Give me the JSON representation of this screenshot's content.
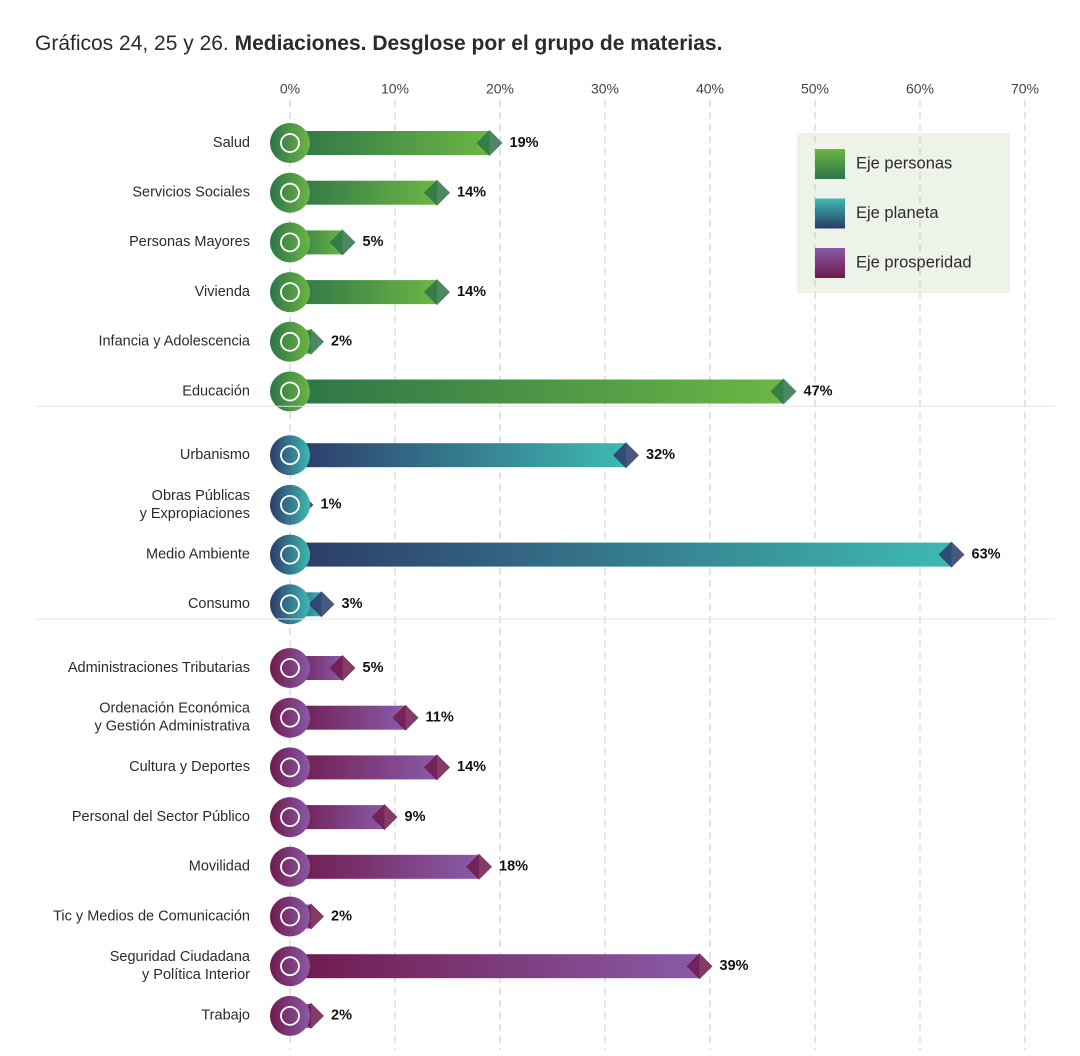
{
  "chart_data": {
    "type": "bar",
    "orientation": "horizontal",
    "figure_label": "Gráficos 24, 25 y 26.",
    "title": "Mediaciones. Desglose por el grupo de materias.",
    "categories": [
      "Salud",
      "Servicios Sociales",
      "Personas Mayores",
      "Vivienda",
      "Infancia y Adolescencia",
      "Educación",
      "Urbanismo",
      "Obras Públicas\ny Expropiaciones",
      "Medio Ambiente",
      "Consumo",
      "Administraciones Tributarias",
      "Ordenación Económica\ny Gestión Administrativa",
      "Cultura y Deportes",
      "Personal del Sector Público",
      "Movilidad",
      "Tic y Medios de Comunicación",
      "Seguridad Ciudadana\ny Política Interior",
      "Trabajo"
    ],
    "series": [
      {
        "name": "Eje personas",
        "color": "#6cb644",
        "color_start": "#2d7448",
        "values": [
          19,
          14,
          5,
          14,
          2,
          47,
          null,
          null,
          null,
          null,
          null,
          null,
          null,
          null,
          null,
          null,
          null,
          null
        ],
        "value_labels": [
          "19%",
          "14%",
          "5%",
          "14%",
          "2%",
          "47%",
          null,
          null,
          null,
          null,
          null,
          null,
          null,
          null,
          null,
          null,
          null,
          null
        ]
      },
      {
        "name": "Eje planeta",
        "color": "#3dbab3",
        "color_start": "#2c3a68",
        "values": [
          null,
          null,
          null,
          null,
          null,
          null,
          32,
          1,
          63,
          3,
          null,
          null,
          null,
          null,
          null,
          null,
          null,
          null
        ],
        "value_labels": [
          null,
          null,
          null,
          null,
          null,
          null,
          "32%",
          "1%",
          "63%",
          "3%",
          null,
          null,
          null,
          null,
          null,
          null,
          null,
          null
        ]
      },
      {
        "name": "Eje prosperidad",
        "color": "#8a5aa8",
        "color_start": "#6e1a4c",
        "values": [
          null,
          null,
          null,
          null,
          null,
          null,
          null,
          null,
          null,
          null,
          5,
          11,
          14,
          9,
          18,
          2,
          39,
          2
        ],
        "value_labels": [
          null,
          null,
          null,
          null,
          null,
          null,
          null,
          null,
          null,
          null,
          "5%",
          "11%",
          "14%",
          "9%",
          "18%",
          "2%",
          "39%",
          "2%"
        ]
      }
    ],
    "xlim": [
      0,
      70
    ],
    "xticks": [
      {
        "value": 0,
        "label": "0%"
      },
      {
        "value": 10,
        "label": "10%"
      },
      {
        "value": 20,
        "label": "20%"
      },
      {
        "value": 30,
        "label": "30%"
      },
      {
        "value": 40,
        "label": "40%"
      },
      {
        "value": 50,
        "label": "50%"
      },
      {
        "value": 60,
        "label": "60%"
      },
      {
        "value": 70,
        "label": "70%"
      }
    ],
    "grid": true,
    "legend": "upper right"
  }
}
